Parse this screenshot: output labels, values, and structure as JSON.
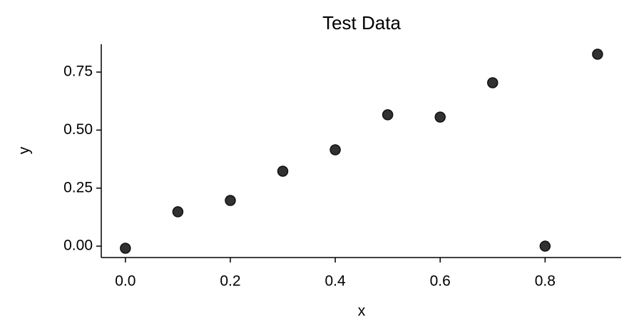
{
  "chart_data": {
    "type": "scatter",
    "title": "Test Data",
    "x_label": "x",
    "y_label": "y",
    "x": [
      0.0,
      0.1,
      0.2,
      0.3,
      0.4,
      0.5,
      0.6,
      0.7,
      0.8,
      0.9
    ],
    "values": [
      -0.009,
      0.148,
      0.197,
      0.323,
      0.415,
      0.566,
      0.556,
      0.704,
      0.0,
      0.827
    ],
    "color": "#262626",
    "xlim": [
      -0.046,
      0.945
    ],
    "ylim": [
      -0.049,
      0.87
    ],
    "xticks": [
      {
        "value": 0,
        "label": "0.0"
      },
      0.2,
      0.4,
      0.6,
      0.8
    ],
    "yticks": [
      {
        "value": 0,
        "label": "0.00"
      },
      0.25,
      {
        "value": 0.5,
        "label": "0.50"
      },
      0.75
    ],
    "grid": false
  }
}
